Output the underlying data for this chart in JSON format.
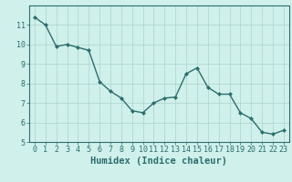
{
  "x": [
    0,
    1,
    2,
    3,
    4,
    5,
    6,
    7,
    8,
    9,
    10,
    11,
    12,
    13,
    14,
    15,
    16,
    17,
    18,
    19,
    20,
    21,
    22,
    23
  ],
  "y": [
    11.4,
    11.0,
    9.9,
    10.0,
    9.85,
    9.7,
    8.1,
    7.6,
    7.25,
    6.6,
    6.5,
    7.0,
    7.25,
    7.3,
    8.5,
    8.8,
    7.8,
    7.45,
    7.45,
    6.5,
    6.2,
    5.5,
    5.4,
    5.6
  ],
  "line_color": "#2d6e6e",
  "marker": "D",
  "marker_size": 2.0,
  "bg_color": "#cff0eb",
  "grid_color_major": "#aad4cc",
  "grid_color_minor": "#bde3dd",
  "xlabel": "Humidex (Indice chaleur)",
  "ylim": [
    5,
    12
  ],
  "xlim": [
    -0.5,
    23.5
  ],
  "yticks": [
    5,
    6,
    7,
    8,
    9,
    10,
    11
  ],
  "xticks": [
    0,
    1,
    2,
    3,
    4,
    5,
    6,
    7,
    8,
    9,
    10,
    11,
    12,
    13,
    14,
    15,
    16,
    17,
    18,
    19,
    20,
    21,
    22,
    23
  ],
  "tick_color": "#2d6e6e",
  "label_fontsize": 7.5,
  "tick_fontsize": 6.0,
  "linewidth": 1.0
}
